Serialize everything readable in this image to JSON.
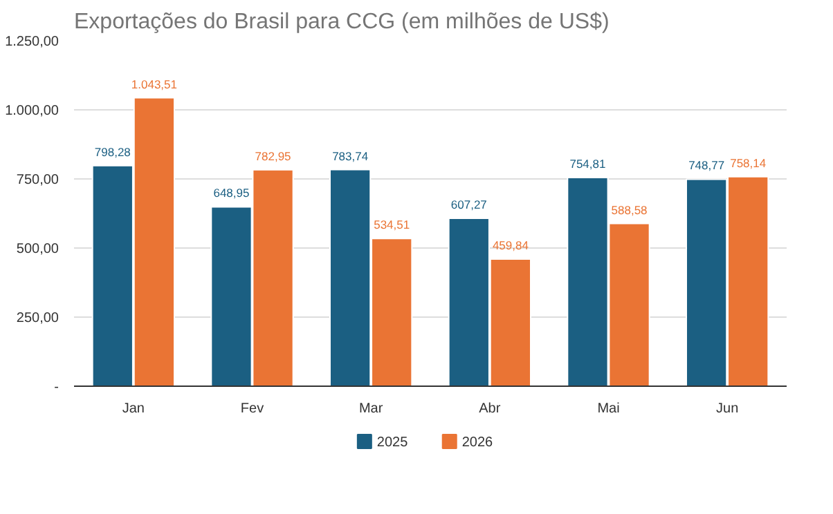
{
  "chart_data": {
    "type": "bar",
    "title": "Exportações do Brasil para CCG (em milhões de US$)",
    "categories": [
      "Jan",
      "Fev",
      "Mar",
      "Abr",
      "Mai",
      "Jun"
    ],
    "series": [
      {
        "name": "2025",
        "color": "#1b5f82",
        "values": [
          798.28,
          648.95,
          783.74,
          607.27,
          754.81,
          748.77
        ],
        "value_labels": [
          "798,28",
          "648,95",
          "783,74",
          "607,27",
          "754,81",
          "748,77"
        ]
      },
      {
        "name": "2026",
        "color": "#ea7434",
        "values": [
          1043.51,
          782.95,
          534.51,
          459.84,
          588.58,
          758.14
        ],
        "value_labels": [
          "1.043,51",
          "782,95",
          "534,51",
          "459,84",
          "588,58",
          "758,14"
        ]
      }
    ],
    "ylim": [
      0,
      1250
    ],
    "yticks": [
      {
        "value": 0,
        "label": "-"
      },
      {
        "value": 250,
        "label": "250,00"
      },
      {
        "value": 500,
        "label": "500,00"
      },
      {
        "value": 750,
        "label": "750,00"
      },
      {
        "value": 1000,
        "label": "1.000,00"
      },
      {
        "value": 1250,
        "label": "1.250,00"
      }
    ],
    "grid": "y",
    "legend": "bottom"
  }
}
